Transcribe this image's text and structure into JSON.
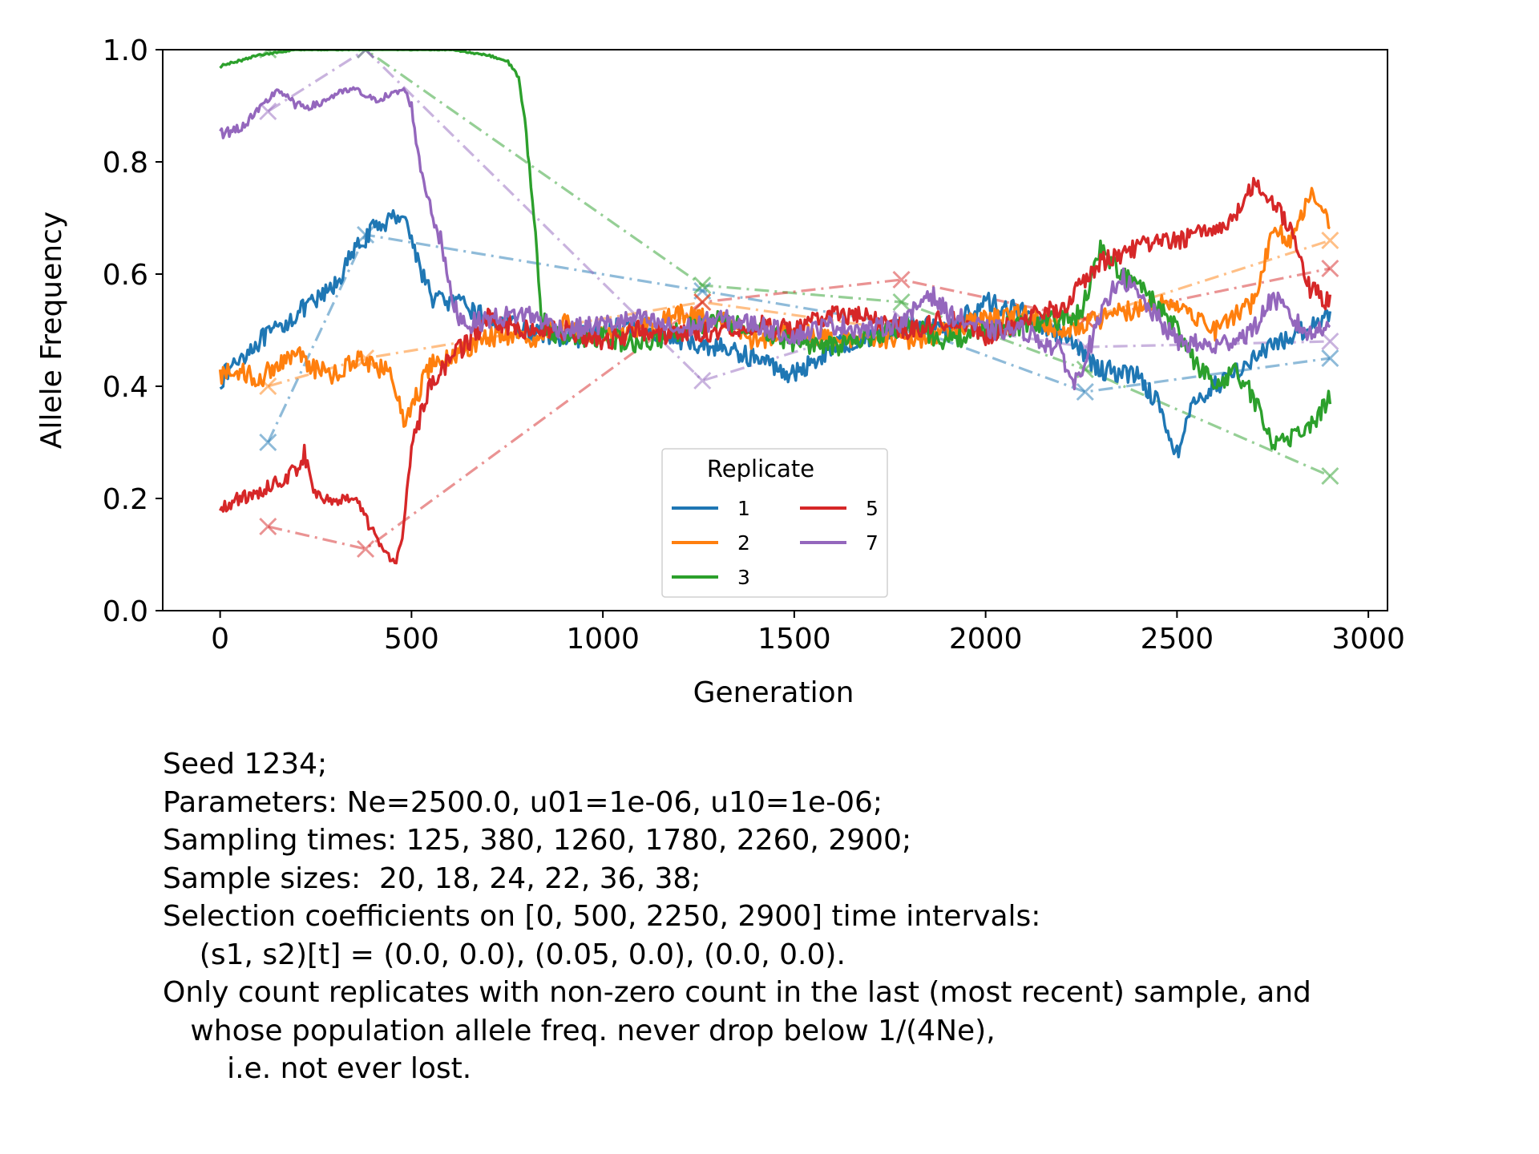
{
  "chart_data": {
    "type": "line",
    "xlabel": "Generation",
    "ylabel": "Allele Frequency",
    "xlim": [
      -150,
      3050
    ],
    "ylim": [
      0.0,
      1.0
    ],
    "xticks": [
      0,
      500,
      1000,
      1500,
      2000,
      2500,
      3000
    ],
    "yticks": [
      0.0,
      0.2,
      0.4,
      0.6,
      0.8,
      1.0
    ],
    "ytick_labels": [
      "0.0",
      "0.2",
      "0.4",
      "0.6",
      "0.8",
      "1.0"
    ],
    "grid": false,
    "legend": {
      "title": "Replicate",
      "placement": "lower center",
      "ncol": 2
    },
    "series": [
      {
        "name": "1",
        "color": "#1f77b4",
        "x": [
          0,
          50,
          100,
          150,
          200,
          250,
          300,
          350,
          400,
          450,
          480,
          500,
          550,
          600,
          650,
          700,
          800,
          900,
          1000,
          1100,
          1200,
          1300,
          1400,
          1500,
          1600,
          1700,
          1800,
          1900,
          2000,
          2100,
          2200,
          2300,
          2400,
          2450,
          2500,
          2550,
          2600,
          2700,
          2800,
          2900
        ],
        "y": [
          0.41,
          0.45,
          0.48,
          0.5,
          0.53,
          0.55,
          0.58,
          0.64,
          0.68,
          0.7,
          0.71,
          0.66,
          0.56,
          0.55,
          0.54,
          0.52,
          0.5,
          0.48,
          0.5,
          0.51,
          0.48,
          0.47,
          0.45,
          0.42,
          0.47,
          0.49,
          0.51,
          0.5,
          0.55,
          0.53,
          0.49,
          0.43,
          0.42,
          0.37,
          0.28,
          0.38,
          0.4,
          0.45,
          0.49,
          0.53
        ],
        "samples_x": [
          125,
          380,
          1260,
          1780,
          2260,
          2900
        ],
        "samples_y": [
          0.3,
          0.67,
          0.57,
          0.51,
          0.39,
          0.45
        ]
      },
      {
        "name": "2",
        "color": "#ff7f0e",
        "x": [
          0,
          50,
          100,
          150,
          200,
          250,
          300,
          350,
          400,
          450,
          480,
          500,
          550,
          600,
          700,
          800,
          900,
          1000,
          1100,
          1200,
          1300,
          1400,
          1500,
          1600,
          1700,
          1800,
          1900,
          2000,
          2100,
          2200,
          2300,
          2400,
          2500,
          2600,
          2700,
          2750,
          2800,
          2850,
          2900
        ],
        "y": [
          0.42,
          0.43,
          0.41,
          0.44,
          0.46,
          0.43,
          0.42,
          0.45,
          0.44,
          0.42,
          0.33,
          0.36,
          0.44,
          0.45,
          0.49,
          0.48,
          0.51,
          0.49,
          0.5,
          0.53,
          0.52,
          0.48,
          0.5,
          0.48,
          0.49,
          0.48,
          0.5,
          0.52,
          0.53,
          0.5,
          0.52,
          0.54,
          0.55,
          0.5,
          0.55,
          0.68,
          0.66,
          0.75,
          0.69
        ],
        "samples_x": [
          125,
          380,
          1260,
          1780,
          2260,
          2900
        ],
        "samples_y": [
          0.4,
          0.45,
          0.55,
          0.5,
          0.52,
          0.66
        ]
      },
      {
        "name": "3",
        "color": "#2ca02c",
        "x": [
          0,
          50,
          100,
          200,
          300,
          400,
          500,
          600,
          700,
          750,
          780,
          800,
          820,
          840,
          860,
          900,
          1000,
          1100,
          1200,
          1300,
          1400,
          1500,
          1600,
          1700,
          1800,
          1900,
          2000,
          2100,
          2200,
          2250,
          2300,
          2350,
          2400,
          2500,
          2550,
          2600,
          2650,
          2700,
          2750,
          2800,
          2850,
          2900
        ],
        "y": [
          0.97,
          0.98,
          0.99,
          1.0,
          1.0,
          1.0,
          1.0,
          1.0,
          0.99,
          0.98,
          0.95,
          0.85,
          0.7,
          0.52,
          0.5,
          0.48,
          0.49,
          0.47,
          0.5,
          0.52,
          0.5,
          0.48,
          0.47,
          0.49,
          0.51,
          0.48,
          0.5,
          0.51,
          0.52,
          0.53,
          0.65,
          0.6,
          0.58,
          0.5,
          0.44,
          0.4,
          0.43,
          0.38,
          0.3,
          0.31,
          0.33,
          0.38
        ],
        "samples_x": [
          125,
          380,
          1260,
          1780,
          2260,
          2900
        ],
        "samples_y": [
          1.0,
          1.0,
          0.58,
          0.55,
          0.43,
          0.24
        ]
      },
      {
        "name": "5",
        "color": "#d62728",
        "x": [
          0,
          50,
          100,
          150,
          200,
          220,
          250,
          300,
          350,
          400,
          430,
          460,
          480,
          500,
          550,
          600,
          650,
          700,
          800,
          900,
          1000,
          1100,
          1200,
          1300,
          1400,
          1500,
          1600,
          1700,
          1800,
          1900,
          2000,
          2100,
          2200,
          2250,
          2300,
          2400,
          2500,
          2600,
          2650,
          2700,
          2750,
          2800,
          2850,
          2900
        ],
        "y": [
          0.18,
          0.2,
          0.21,
          0.23,
          0.25,
          0.28,
          0.21,
          0.19,
          0.2,
          0.14,
          0.1,
          0.09,
          0.15,
          0.3,
          0.4,
          0.45,
          0.48,
          0.52,
          0.5,
          0.5,
          0.48,
          0.5,
          0.49,
          0.5,
          0.51,
          0.5,
          0.53,
          0.52,
          0.5,
          0.52,
          0.49,
          0.52,
          0.54,
          0.58,
          0.62,
          0.65,
          0.66,
          0.68,
          0.7,
          0.76,
          0.73,
          0.68,
          0.57,
          0.55
        ],
        "samples_x": [
          125,
          380,
          1260,
          1780,
          2260,
          2900
        ],
        "samples_y": [
          0.15,
          0.11,
          0.55,
          0.59,
          0.52,
          0.61
        ]
      },
      {
        "name": "7",
        "color": "#9467bd",
        "x": [
          0,
          50,
          100,
          150,
          200,
          250,
          300,
          350,
          400,
          450,
          480,
          500,
          520,
          550,
          580,
          600,
          620,
          650,
          700,
          800,
          900,
          1000,
          1100,
          1200,
          1300,
          1400,
          1500,
          1600,
          1700,
          1800,
          1850,
          1900,
          2000,
          2100,
          2200,
          2230,
          2300,
          2350,
          2400,
          2500,
          2600,
          2700,
          2750,
          2800,
          2850,
          2900
        ],
        "y": [
          0.85,
          0.86,
          0.89,
          0.93,
          0.9,
          0.9,
          0.92,
          0.93,
          0.91,
          0.92,
          0.93,
          0.9,
          0.8,
          0.72,
          0.65,
          0.57,
          0.53,
          0.51,
          0.52,
          0.53,
          0.5,
          0.51,
          0.52,
          0.5,
          0.52,
          0.51,
          0.49,
          0.51,
          0.5,
          0.52,
          0.57,
          0.53,
          0.5,
          0.5,
          0.46,
          0.4,
          0.52,
          0.6,
          0.56,
          0.48,
          0.47,
          0.5,
          0.56,
          0.52,
          0.49,
          0.52
        ],
        "samples_x": [
          125,
          380,
          1260,
          1780,
          2260,
          2900
        ],
        "samples_y": [
          0.89,
          1.0,
          0.41,
          0.52,
          0.47,
          0.48
        ]
      }
    ]
  },
  "caption": {
    "lines": [
      "Seed 1234;",
      "Parameters: Ne=2500.0, u01=1e-06, u10=1e-06;",
      "Sampling times: 125, 380, 1260, 1780, 2260, 2900;",
      "Sample sizes:  20, 18, 24, 22, 36, 38;",
      "Selection coefficients on [0, 500, 2250, 2900] time intervals:",
      "    (s1, s2)[t] = (0.0, 0.0), (0.05, 0.0), (0.0, 0.0).",
      "Only count replicates with non-zero count in the last (most recent) sample, and",
      "   whose population allele freq. never drop below 1/(4Ne),",
      "       i.e. not ever lost."
    ]
  }
}
